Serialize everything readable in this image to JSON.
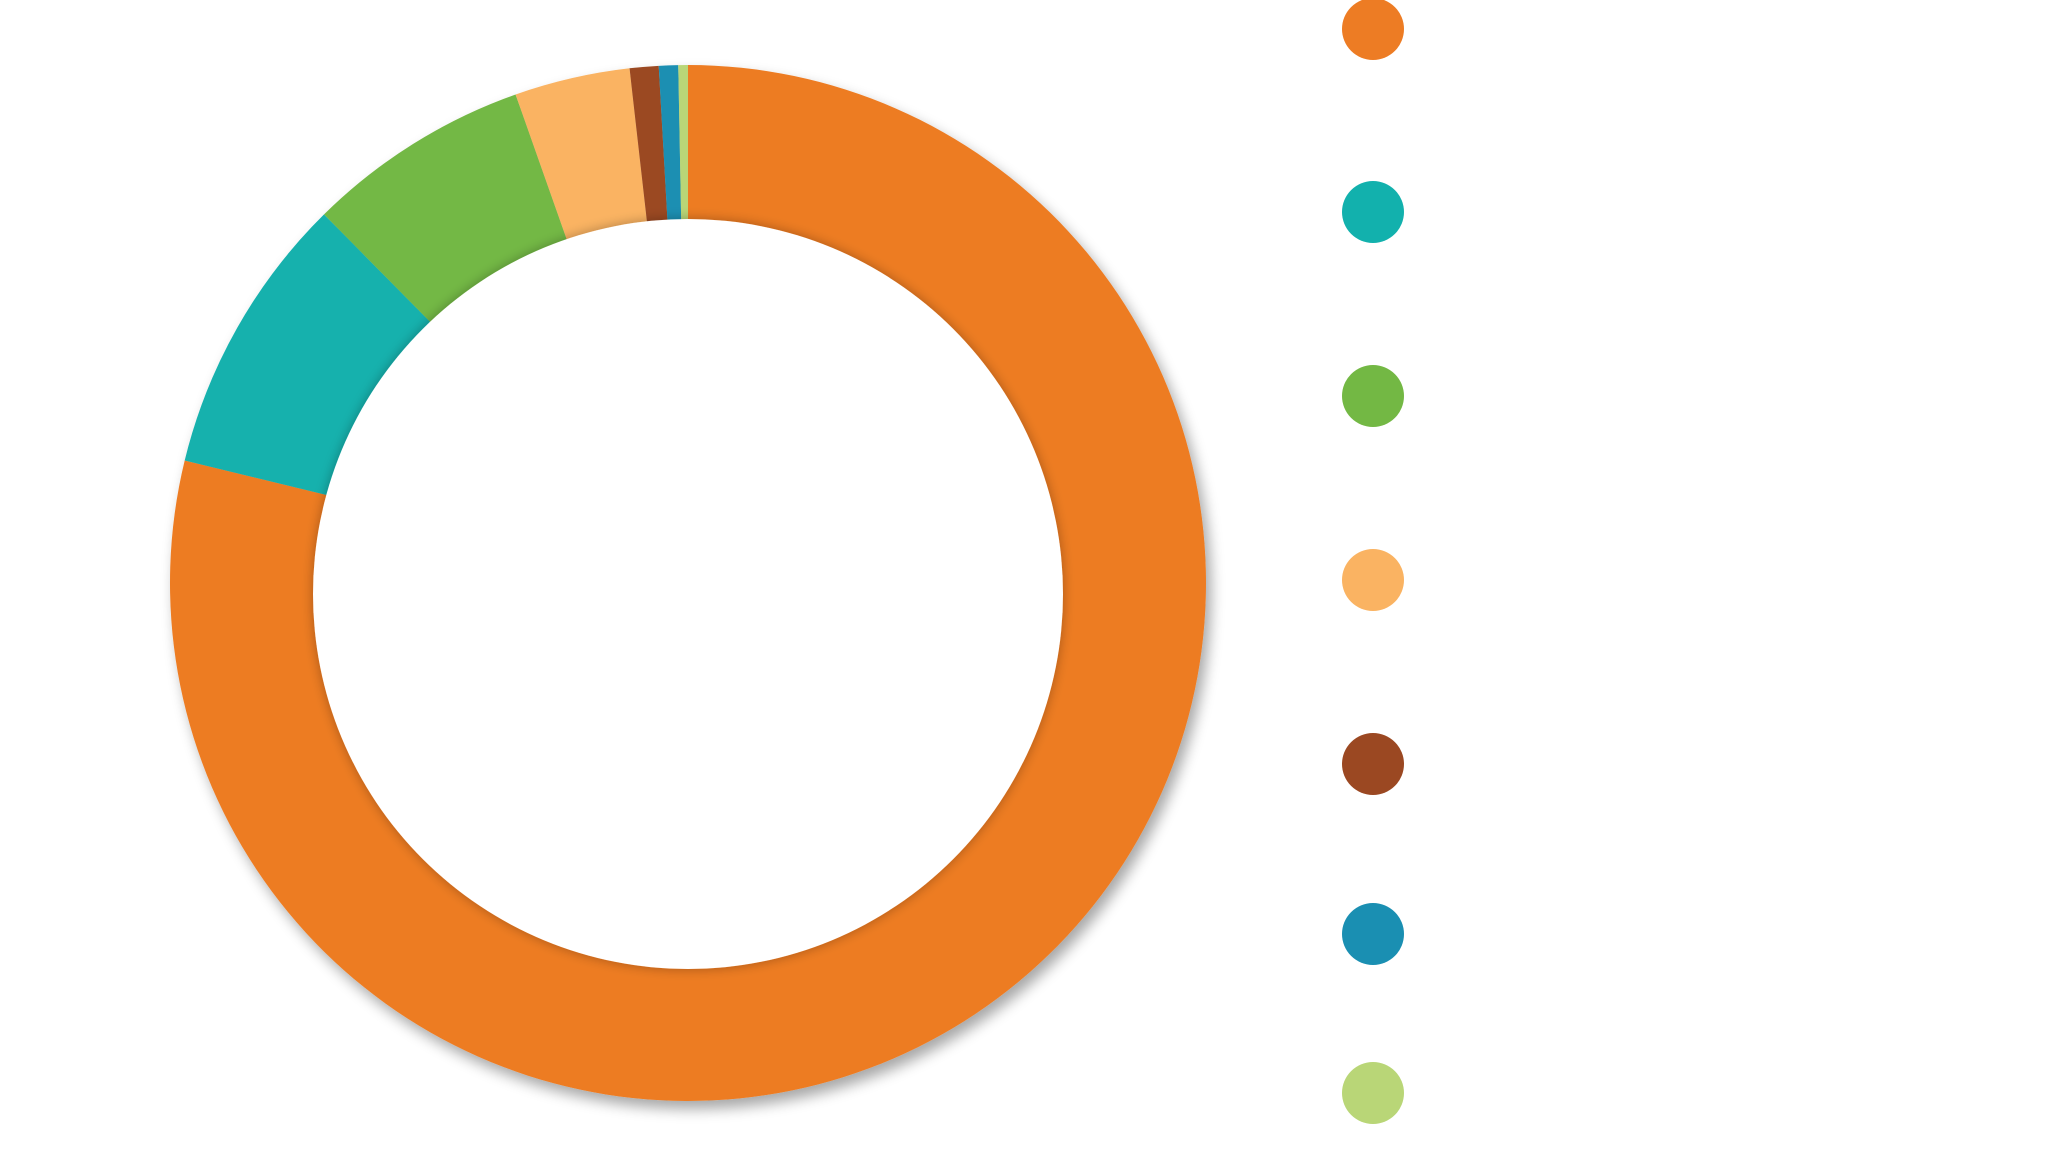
{
  "chart_data": {
    "type": "pie",
    "title": "",
    "legend_position": "right",
    "values": [
      78.8,
      8.8,
      7.0,
      3.6,
      0.9,
      0.6,
      0.3
    ],
    "colors": [
      "#ED7C24",
      "#12B1AD",
      "#73B844",
      "#FAB362",
      "#9B4822",
      "#1A8FB2",
      "#B9D677"
    ]
  }
}
